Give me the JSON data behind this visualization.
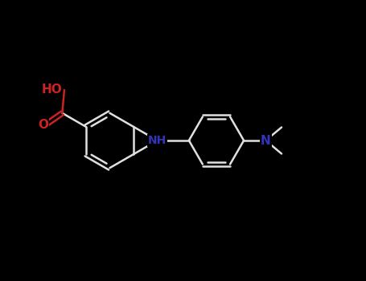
{
  "background_color": "#000000",
  "bond_color": "#e0e0e0",
  "N_color": "#3333bb",
  "O_color": "#cc2222",
  "bond_lw": 1.8,
  "font_size": 11,
  "fig_width": 4.55,
  "fig_height": 3.5,
  "dpi": 100,
  "xlim": [
    -4.5,
    5.5
  ],
  "ylim": [
    -3.0,
    3.0
  ],
  "s": 0.75,
  "cooh_attach_vertex": 2,
  "imid_opens": "right"
}
